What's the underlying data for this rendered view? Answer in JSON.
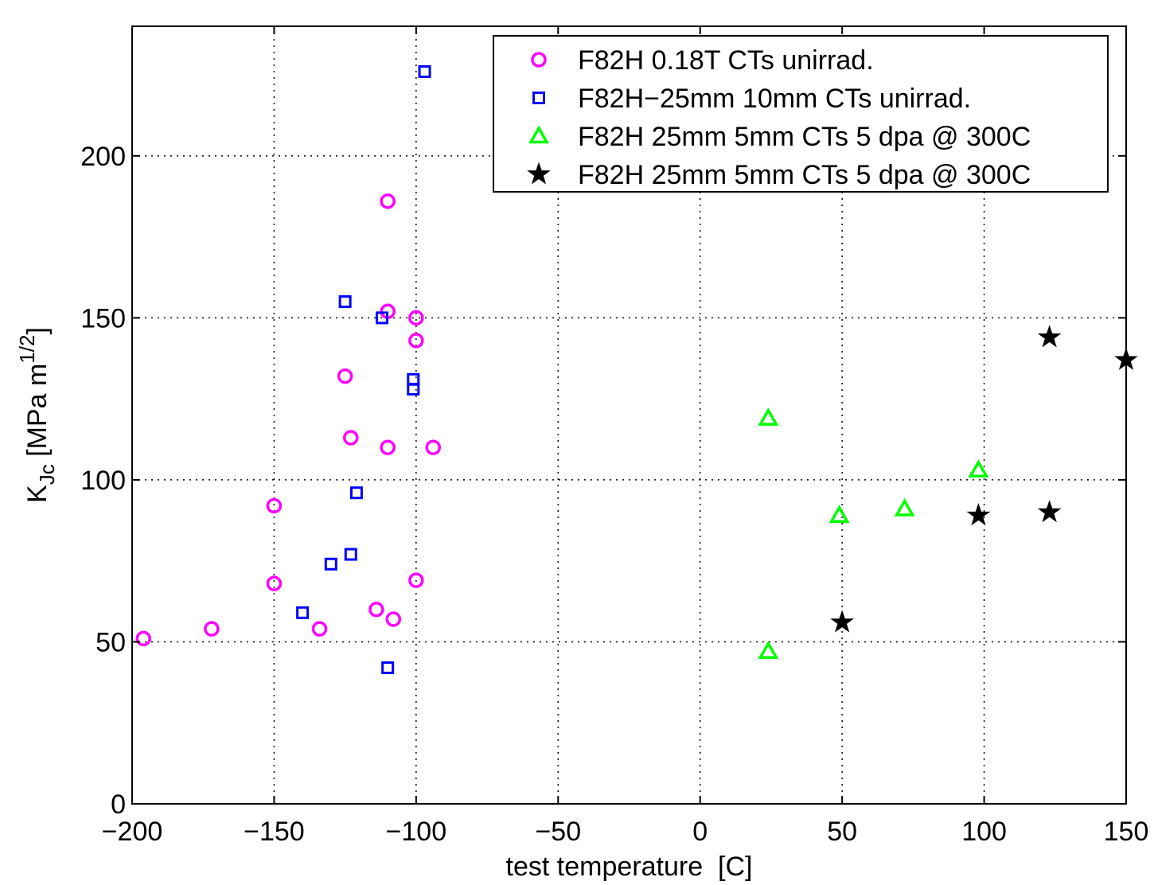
{
  "chart_data": {
    "type": "scatter",
    "xlabel": "test temperature  [C]",
    "ylabel": {
      "main": "K",
      "sub": "Jc",
      "unit_open": " [MPa m",
      "unit_sup": "1/2",
      "unit_close": "]"
    },
    "xlim": [
      -200,
      150
    ],
    "ylim": [
      0,
      240
    ],
    "xticks": [
      -200,
      -150,
      -100,
      -50,
      0,
      50,
      100,
      150
    ],
    "yticks": [
      0,
      50,
      100,
      150,
      200
    ],
    "xtick_labels": [
      "−200",
      "−150",
      "−100",
      "−50",
      "0",
      "50",
      "100",
      "150"
    ],
    "ytick_labels": [
      "0",
      "50",
      "100",
      "150",
      "200"
    ],
    "grid": true,
    "legend_position": "top-right",
    "series": [
      {
        "name": "F82H 0.18T CTs unirrad.",
        "marker": "circle",
        "color": "#ff00ff",
        "points": [
          [
            -196,
            51
          ],
          [
            -172,
            54
          ],
          [
            -150,
            92
          ],
          [
            -150,
            68
          ],
          [
            -134,
            54
          ],
          [
            -125,
            132
          ],
          [
            -123,
            113
          ],
          [
            -114,
            60
          ],
          [
            -110,
            186
          ],
          [
            -110,
            152
          ],
          [
            -110,
            110
          ],
          [
            -108,
            57
          ],
          [
            -100,
            150
          ],
          [
            -100,
            143
          ],
          [
            -100,
            69
          ],
          [
            -94,
            110
          ]
        ]
      },
      {
        "name": "F82H−25mm 10mm CTs unirrad.",
        "marker": "square",
        "color": "#0000ff",
        "points": [
          [
            -140,
            59
          ],
          [
            -130,
            74
          ],
          [
            -125,
            155
          ],
          [
            -123,
            77
          ],
          [
            -121,
            96
          ],
          [
            -112,
            150
          ],
          [
            -110,
            42
          ],
          [
            -101,
            131
          ],
          [
            -101,
            128
          ],
          [
            -97,
            226
          ]
        ]
      },
      {
        "name": "F82H 25mm 5mm CTs 5 dpa @ 300C",
        "marker": "triangle",
        "color": "#00ff00",
        "points": [
          [
            24,
            119
          ],
          [
            24,
            47
          ],
          [
            49,
            89
          ],
          [
            72,
            91
          ],
          [
            98,
            103
          ]
        ]
      },
      {
        "name": "F82H 25mm 5mm CTs 5 dpa @ 300C",
        "marker": "star",
        "color": "#000000",
        "points": [
          [
            50,
            56
          ],
          [
            98,
            89
          ],
          [
            123,
            144
          ],
          [
            123,
            90
          ],
          [
            150,
            137
          ]
        ]
      }
    ]
  }
}
